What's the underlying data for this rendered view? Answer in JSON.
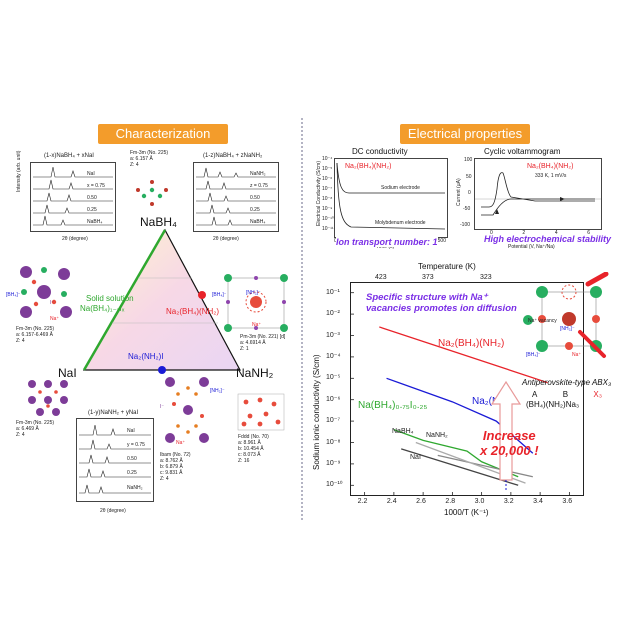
{
  "left": {
    "banner": "Characterization",
    "vertices": {
      "top": "NaBH₄",
      "left": "NaI",
      "right": "NaNH₂"
    },
    "solid_solution": "Solid solution",
    "solid_solution_formula": "Na(BH₄)₁₋ₓIₓ",
    "na2bh4nh2": "Na₂(BH₄)(NH₂)",
    "na2nh2i": "Na₂(NH₂)I",
    "xrd_top_left": {
      "title": "(1-x)NaBH₄ + xNaI",
      "labels": [
        "NaI",
        "x = 0.75",
        "0.50",
        "0.25",
        "NaBH₄"
      ],
      "xlabel": "2θ (degree)",
      "ylabel": "Intensity (arb. unit)"
    },
    "xrd_top_right": {
      "title": "(1-z)NaBH₄ + zNaNH₂",
      "labels": [
        "NaNH₂",
        "z = 0.75",
        "0.50",
        "0.25",
        "NaBH₄"
      ],
      "xlabel": "2θ (degree)",
      "ylabel": "Intensity (arb. unit)"
    },
    "xrd_bottom": {
      "title": "(1-y)NaNH₂ + yNaI",
      "labels": [
        "NaI",
        "y = 0.75",
        "0.50",
        "0.25",
        "NaNH₂"
      ],
      "xlabel": "2θ (degree)",
      "ylabel": "Intensity (arb. unit)"
    },
    "xrd_ticks": [
      "10",
      "20",
      "30",
      "40",
      "50",
      "60"
    ],
    "cryst_top": {
      "group": "Fm-3m (No. 225)",
      "a": "a: 6.157 Å",
      "z": "Z: 4"
    },
    "cryst_left": {
      "group": "Fm-3m (No. 225)",
      "a": "a: 6.157-6.469 Å",
      "z": "Z: 4",
      "ion1": "[BH₄]⁻",
      "ion2": "Na⁺",
      "ion3": "I⁻"
    },
    "cryst_right": {
      "group": "Pm-3m (No. 221) [d]",
      "a": "a: 4.6914 Å",
      "z": "Z: 1",
      "ion1": "[BH₄]⁻",
      "ion2": "[NH₂]⁻",
      "ion3": "Na⁺"
    },
    "cryst_bl": {
      "group": "Fm-3m (No. 225)",
      "a": "a: 6.469 Å",
      "z": "Z: 4"
    },
    "cryst_bc": {
      "group": "Ibam (No. 72)",
      "a": "a: 8.762 Å",
      "b": "b: 6.879 Å",
      "c": "c: 9.831 Å",
      "z": "Z: 4",
      "ion1": "[NH₂]⁻",
      "ion2": "Na⁺",
      "ion3": "I⁻"
    },
    "cryst_br": {
      "group": "Fddd (No. 70)",
      "a": "a: 8.961 Å",
      "b": "b: 10.454 Å",
      "c": "c: 8.073 Å",
      "z": "Z: 16"
    }
  },
  "right": {
    "banner": "Electrical properties",
    "dc": {
      "title": "DC conductivity",
      "compound": "Na₂(BH₄)(NH₂)",
      "sodium": "Sodium electrode",
      "moly": "Molybdenum electrode",
      "xlabel": "Time (s)",
      "ylabel": "Electrical Conductivity (S/cm)",
      "yticks": [
        "10⁻⁴",
        "10⁻⁵",
        "10⁻⁶",
        "10⁻⁷",
        "10⁻⁸",
        "10⁻⁹",
        "10⁻¹⁰",
        "10⁻¹¹"
      ],
      "xticks": [
        "0",
        "100",
        "200",
        "300",
        "400",
        "500"
      ],
      "caption": "Ion transport number: 1"
    },
    "cv": {
      "title": "Cyclic voltammogram",
      "compound": "Na₂(BH₄)(NH₂)",
      "cond": "333 K, 1 mV/s",
      "xlabel": "Potential (V, Na⁺/Na)",
      "ylabel": "Current (μA)",
      "xticks": [
        "0",
        "2",
        "4",
        "6"
      ],
      "yticks": [
        "100",
        "50",
        "0",
        "-50",
        "-100"
      ],
      "caption": "High electrochemical stability"
    },
    "arrhenius": {
      "top_label": "Temperature (K)",
      "top_ticks": [
        "423",
        "373",
        "323"
      ],
      "xlabel": "1000/T (K⁻¹)",
      "ylabel": "Sodium ionic conductivity (S/cm)",
      "xticks": [
        "2.2",
        "2.4",
        "2.6",
        "2.8",
        "3.0",
        "3.2",
        "3.4",
        "3.6"
      ],
      "yticks": [
        "10⁻¹",
        "10⁻²",
        "10⁻³",
        "10⁻⁴",
        "10⁻⁵",
        "10⁻⁶",
        "10⁻⁷",
        "10⁻⁸",
        "10⁻⁹",
        "10⁻¹⁰"
      ],
      "specific": [
        "Specific structure with Na⁺",
        "vacancies promotes ion diffusion"
      ],
      "increase": [
        "Increase",
        "x 20,000 !"
      ],
      "series": {
        "red": "Na₂(BH₄)(NH₂)",
        "blue": "Na₂(NH₂)I",
        "green": "Na(BH₄)₀.₇₅I₀.₂₅",
        "nabh4": "NaBH₄",
        "nanh2": "NaNH₂",
        "nai": "NaI"
      },
      "vacancy": "Na⁺ vacancy",
      "bh4": "[BH₄]⁻",
      "nh2": "[NH₂]⁻",
      "na": "Na⁺",
      "antiperovskite": "Antiperovskite-type ABX₃",
      "abx": [
        "A",
        "B",
        "X₃"
      ],
      "abx_formula": "(BH₄)(NH₂)Na₃"
    }
  },
  "colors": {
    "orange": "#f39c2b",
    "red": "#e8232a",
    "blue": "#1a1ad6",
    "green": "#2fa82f",
    "purple": "#7a2ee6"
  }
}
